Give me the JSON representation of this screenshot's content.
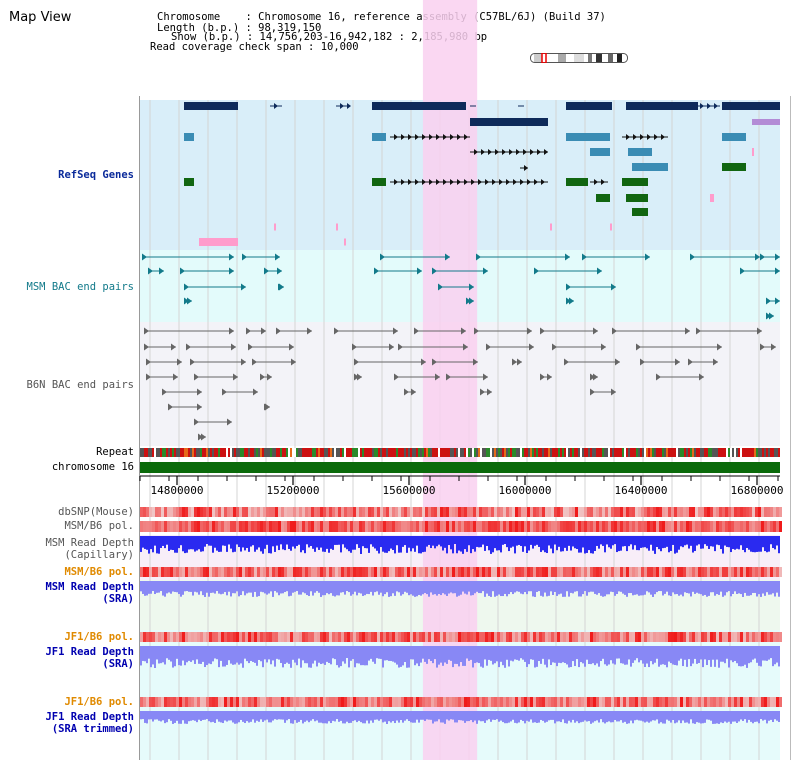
{
  "title": "Map View",
  "info": {
    "chromosome_label": "Chromosome",
    "chromosome_value": "Chromosome 16, reference assembly (C57BL/6J) (Build 37)",
    "length_label": "Length (b.p.)",
    "length_value": "98,319,150",
    "show_label": "Show (b.p.)",
    "show_value": "14,756,203-16,942,182 : 2,185,980 bp",
    "coverage_label": "Read coverage check span",
    "coverage_value": "10,000"
  },
  "tracks": {
    "refseq": "RefSeq Genes",
    "msm_bac": "MSM BAC end pairs",
    "b6n_bac": "B6N BAC end pairs",
    "repeat": "Repeat",
    "chromosome": "chromosome 16",
    "dbsnp": "dbSNP(Mouse)",
    "msm_b6_pol": "MSM/B6 pol.",
    "msm_depth_cap_1": "MSM Read Depth",
    "msm_depth_cap_2": "(Capillary)",
    "msm_b6_pol_2": "MSM/B6 pol.",
    "msm_depth_sra_1": "MSM Read Depth",
    "msm_depth_sra_2": "(SRA)",
    "jf1_b6_pol": "JF1/B6 pol.",
    "jf1_depth_sra_1": "JF1 Read Depth",
    "jf1_depth_sra_2": "(SRA)",
    "jf1_b6_pol_2": "JF1/B6 pol.",
    "jf1_depth_trim_1": "JF1 Read Depth",
    "jf1_depth_trim_2": "(SRA trimmed)"
  },
  "axis": {
    "ticks": [
      "14800000",
      "15200000",
      "15600000",
      "16000000",
      "16400000",
      "16800000"
    ],
    "tick_values": [
      14800000,
      15200000,
      15600000,
      16000000,
      16400000,
      16800000
    ],
    "view_start": 14756203,
    "view_end": 16942182
  },
  "highlight": {
    "start": 15648000,
    "end": 15835000
  },
  "colors": {
    "refseq_bg": "#d9eef9",
    "msm_bg": "#e3fbfb",
    "b6n_bg": "#f3f3f8",
    "highlight": "#f9d0f0",
    "gene_dark": "#0e2a5a",
    "gene_mid": "#3a8cb4",
    "gene_green": "#116611",
    "gene_pink": "#ff9ccc",
    "msm_bac": "#127a8a",
    "b6n_bac": "#666666",
    "chromosome_bar": "#0a6a0a",
    "depth_blue": "#2a2af0",
    "depth_light": "#8888f5"
  }
}
